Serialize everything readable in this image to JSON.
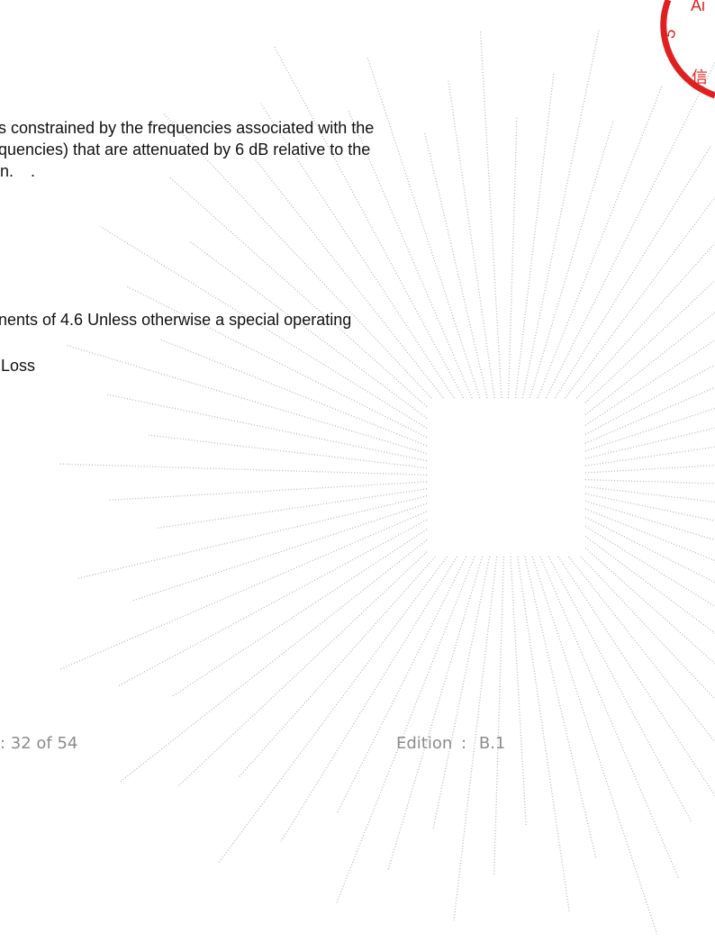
{
  "body": {
    "line1": "s constrained by the frequencies associated with the",
    "line2": "quencies) that are attenuated by 6 dB relative to the",
    "line3": "n.",
    "line3_dot": ".",
    "line4": "nents of 4.6 Unless otherwise a special operating",
    "line5": "Loss"
  },
  "footer": {
    "page": ": 32 of 54",
    "edition_label": "Edition",
    "edition_sep": ":",
    "edition_value": "B.1"
  },
  "watermark": {
    "type": "dotted radial burst",
    "color": "#b8b8b8"
  },
  "stamp": {
    "color": "#e02020",
    "fragments": [
      "Ai",
      "5",
      "信"
    ]
  }
}
